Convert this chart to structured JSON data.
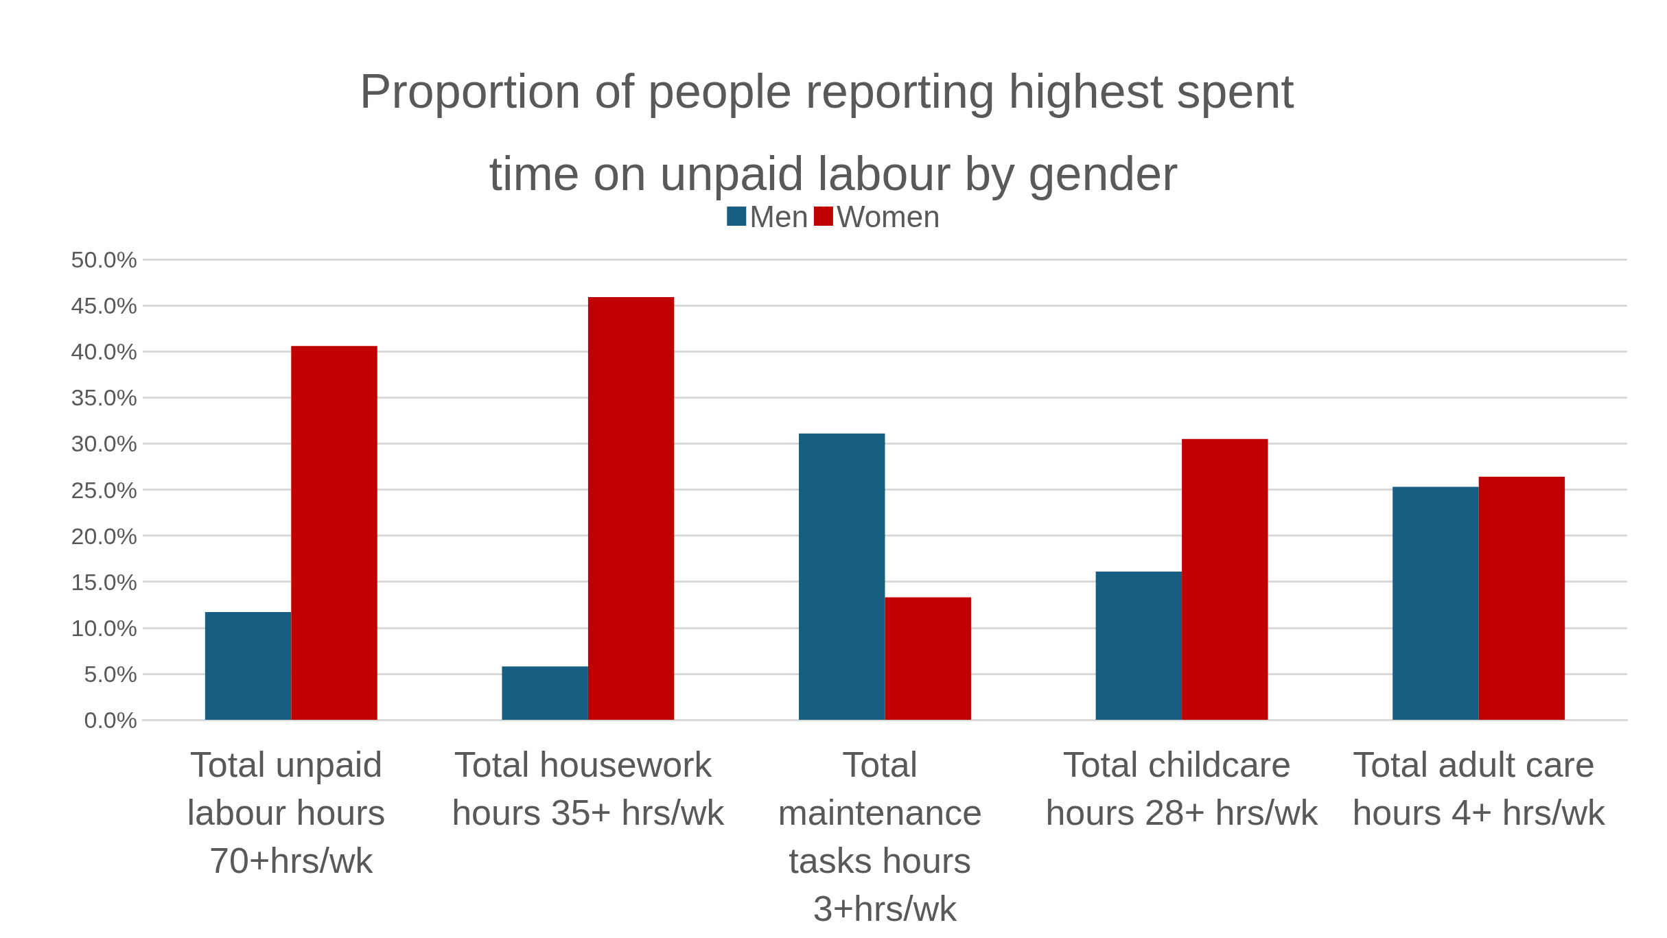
{
  "chart_data": {
    "type": "bar",
    "title": "Proportion of people reporting highest spent time on unpaid labour by gender",
    "categories": [
      "Total unpaid labour hours 70+hrs/wk",
      "Total housework hours 35+ hrs/wk",
      "Total maintenance tasks hours 3+hrs/wk",
      "Total childcare hours 28+ hrs/wk",
      "Total adult care hours 4+ hrs/wk"
    ],
    "series": [
      {
        "name": "Men",
        "color": "#175e82",
        "values": [
          11.7,
          5.8,
          31.1,
          16.1,
          25.3
        ]
      },
      {
        "name": "Women",
        "color": "#c00000",
        "values": [
          40.6,
          45.9,
          13.3,
          30.5,
          26.4
        ]
      }
    ],
    "ylim": [
      0,
      50
    ],
    "yticks": [
      {
        "value": 0,
        "label": "0.0%"
      },
      {
        "value": 5,
        "label": "5.0%"
      },
      {
        "value": 10,
        "label": "10.0%"
      },
      {
        "value": 15,
        "label": "15.0%"
      },
      {
        "value": 20,
        "label": "20.0%"
      },
      {
        "value": 25,
        "label": "25.0%"
      },
      {
        "value": 30,
        "label": "30.0%"
      },
      {
        "value": 35,
        "label": "35.0%"
      },
      {
        "value": 40,
        "label": "40.0%"
      },
      {
        "value": 45,
        "label": "45.0%"
      },
      {
        "value": 50,
        "label": "50.0%"
      }
    ],
    "grid": "y",
    "legend": "top"
  }
}
